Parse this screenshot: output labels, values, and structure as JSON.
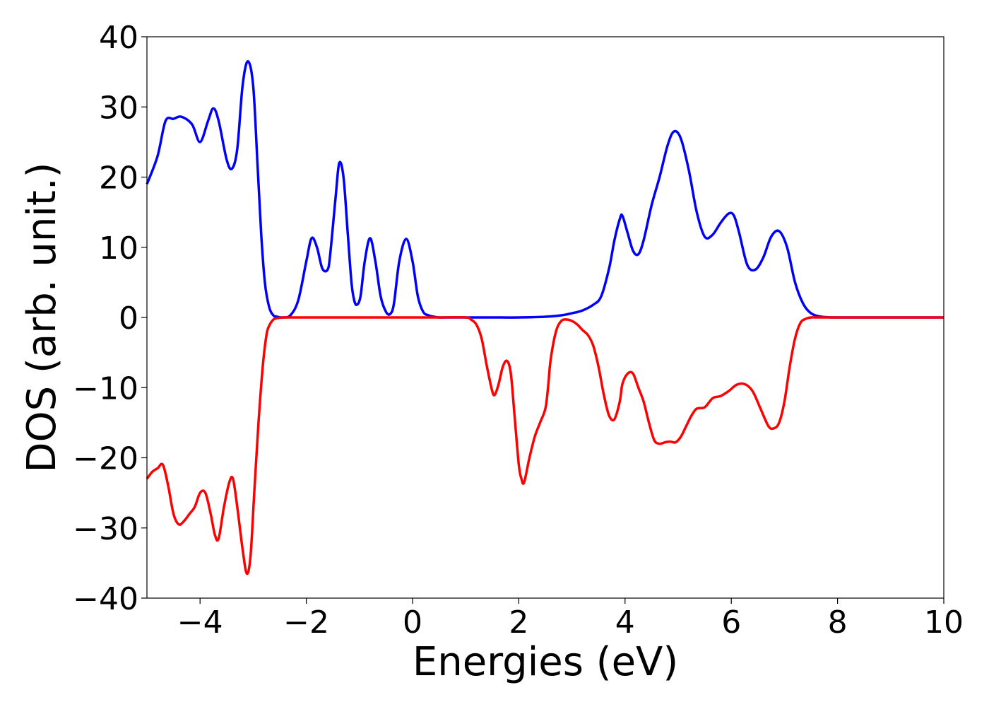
{
  "chart_data": {
    "type": "line",
    "title": "",
    "xlabel": "Energies (eV)",
    "ylabel": "DOS (arb. unit.)",
    "xlim": [
      -5,
      10
    ],
    "ylim": [
      -40,
      40
    ],
    "xticks": [
      -4,
      -2,
      0,
      2,
      4,
      6,
      8,
      10
    ],
    "xtick_labels": [
      "−4",
      "−2",
      "0",
      "2",
      "4",
      "6",
      "8",
      "10"
    ],
    "yticks": [
      -40,
      -30,
      -20,
      -10,
      0,
      10,
      20,
      30,
      40
    ],
    "ytick_labels": [
      "−40",
      "−30",
      "−20",
      "−10",
      "0",
      "10",
      "20",
      "30",
      "40"
    ],
    "grid": false,
    "legend": "none",
    "series": [
      {
        "color": "#0000ff",
        "x": [
          -5.0,
          -4.8,
          -4.65,
          -4.5,
          -4.35,
          -4.15,
          -4.0,
          -3.85,
          -3.75,
          -3.65,
          -3.5,
          -3.4,
          -3.3,
          -3.2,
          -3.1,
          -3.0,
          -2.92,
          -2.85,
          -2.78,
          -2.7,
          -2.62,
          -2.55,
          -2.45,
          -2.3,
          -2.15,
          -2.0,
          -1.9,
          -1.8,
          -1.7,
          -1.6,
          -1.55,
          -1.45,
          -1.38,
          -1.3,
          -1.22,
          -1.15,
          -1.1,
          -1.05,
          -0.98,
          -0.9,
          -0.8,
          -0.7,
          -0.6,
          -0.5,
          -0.42,
          -0.35,
          -0.25,
          -0.12,
          0.0,
          0.1,
          0.2,
          0.3,
          0.4,
          0.5,
          0.6,
          0.7,
          0.8,
          1.0,
          1.5,
          2.0,
          2.5,
          2.8,
          3.0,
          3.2,
          3.4,
          3.55,
          3.7,
          3.8,
          3.9,
          3.95,
          4.05,
          4.15,
          4.25,
          4.35,
          4.5,
          4.65,
          4.8,
          4.92,
          5.05,
          5.2,
          5.35,
          5.5,
          5.65,
          5.8,
          5.95,
          6.05,
          6.15,
          6.3,
          6.45,
          6.6,
          6.75,
          6.9,
          7.05,
          7.2,
          7.35,
          7.5,
          7.7,
          8.0,
          9.0,
          10.0
        ],
        "y": [
          19,
          23,
          28,
          28.3,
          28.6,
          27.5,
          25,
          28,
          29.8,
          28,
          22.5,
          21.2,
          24,
          33,
          36.5,
          33,
          22,
          12,
          5,
          1.5,
          0.3,
          0.1,
          0,
          0.3,
          2.5,
          8,
          11.3,
          10,
          7,
          6.8,
          9,
          17,
          22,
          20,
          12,
          5,
          2.5,
          1.8,
          3,
          8,
          11.3,
          8,
          3,
          0.8,
          0.5,
          2,
          8,
          11.2,
          8,
          3,
          0.8,
          0.3,
          0.1,
          0,
          0,
          0,
          0,
          0,
          0,
          0,
          0.1,
          0.3,
          0.6,
          1,
          1.8,
          3,
          7,
          11,
          14,
          14.5,
          12,
          9.5,
          9,
          11,
          16,
          20,
          24.5,
          26.5,
          25.5,
          21,
          15,
          11.5,
          11.8,
          13.5,
          14.8,
          14.5,
          12,
          7.5,
          6.8,
          8.5,
          11.5,
          12.3,
          10,
          5,
          2,
          0.6,
          0.1,
          0,
          0,
          0
        ]
      },
      {
        "color": "#ff0000",
        "x": [
          -5.0,
          -4.9,
          -4.8,
          -4.7,
          -4.6,
          -4.5,
          -4.4,
          -4.3,
          -4.2,
          -4.1,
          -4.0,
          -3.9,
          -3.8,
          -3.72,
          -3.65,
          -3.55,
          -3.45,
          -3.38,
          -3.3,
          -3.2,
          -3.12,
          -3.05,
          -2.98,
          -2.9,
          -2.82,
          -2.75,
          -2.7,
          -2.62,
          -2.55,
          -2.45,
          -2.35,
          -2.25,
          -2.15,
          -2.0,
          -1.0,
          0.0,
          0.5,
          1.0,
          1.1,
          1.2,
          1.3,
          1.4,
          1.5,
          1.55,
          1.62,
          1.7,
          1.78,
          1.85,
          1.92,
          2.0,
          2.05,
          2.1,
          2.2,
          2.3,
          2.4,
          2.5,
          2.55,
          2.6,
          2.7,
          2.8,
          2.9,
          3.0,
          3.1,
          3.2,
          3.3,
          3.4,
          3.5,
          3.6,
          3.7,
          3.8,
          3.9,
          3.95,
          4.05,
          4.15,
          4.25,
          4.35,
          4.45,
          4.55,
          4.65,
          4.75,
          4.85,
          4.95,
          5.05,
          5.15,
          5.25,
          5.35,
          5.5,
          5.65,
          5.8,
          5.95,
          6.1,
          6.25,
          6.4,
          6.55,
          6.7,
          6.8,
          6.9,
          7.0,
          7.1,
          7.2,
          7.3,
          7.4,
          7.5,
          7.6,
          7.7,
          7.8,
          7.9,
          8.0,
          9.0,
          10.0
        ],
        "y": [
          -23,
          -22,
          -21.5,
          -21,
          -24,
          -28,
          -29.5,
          -29,
          -28,
          -27,
          -25,
          -25,
          -28,
          -31,
          -31.5,
          -27,
          -23.5,
          -23,
          -27,
          -33,
          -36.5,
          -34,
          -25,
          -15,
          -7,
          -2.5,
          -1.2,
          -0.3,
          -0.1,
          0,
          0,
          0,
          0,
          0,
          0,
          0,
          0,
          0,
          -0.3,
          -1,
          -3,
          -7,
          -10.5,
          -11,
          -9.5,
          -7,
          -6.2,
          -8,
          -14,
          -21,
          -23,
          -23.5,
          -20,
          -17,
          -15,
          -13,
          -10,
          -6,
          -2,
          -0.5,
          -0.3,
          -0.5,
          -1,
          -1.8,
          -2.5,
          -4,
          -7,
          -11,
          -14,
          -14.5,
          -12,
          -9.5,
          -8,
          -8,
          -10,
          -12,
          -15,
          -17.5,
          -18,
          -17.8,
          -17.7,
          -17.8,
          -17,
          -15.5,
          -14,
          -13,
          -12.8,
          -11.5,
          -11.2,
          -10.5,
          -9.6,
          -9.5,
          -10.5,
          -13,
          -15.5,
          -15.8,
          -15,
          -12,
          -7,
          -3,
          -0.8,
          -0.2,
          0,
          0,
          0,
          0,
          0,
          0,
          0,
          0
        ]
      }
    ]
  }
}
